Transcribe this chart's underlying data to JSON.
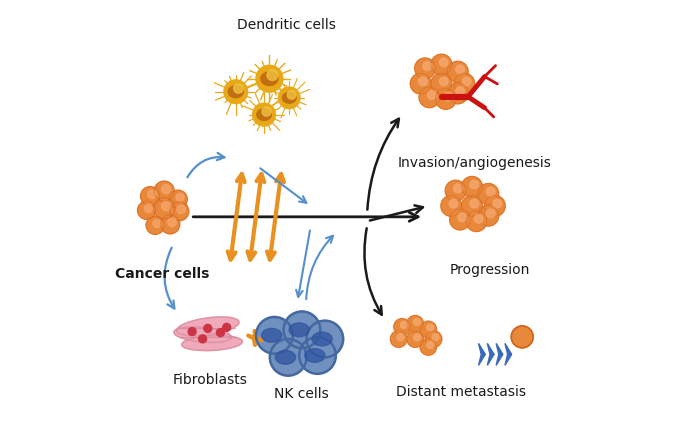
{
  "background_color": "#ffffff",
  "fig_width": 6.82,
  "fig_height": 4.38,
  "dpi": 100,
  "labels": {
    "dendritic_cells": "Dendritic cells",
    "cancer_cells": "Cancer cells",
    "fibroblasts": "Fibroblasts",
    "nk_cells": "NK cells",
    "invasion": "Invasion/angiogenesis",
    "progression": "Progression",
    "distant": "Distant metastasis"
  },
  "colors": {
    "cancer_outer": "#E8883A",
    "cancer_inner": "#F5A870",
    "cancer_ring": "#D4611A",
    "dendritic_body": "#E8A818",
    "dendritic_nucleus": "#C07010",
    "dendritic_light": "#F0C040",
    "fibroblast_body": "#F0AABB",
    "fibroblast_line": "#D08090",
    "fibroblast_spot": "#CC3344",
    "nk_outer": "#7090C0",
    "nk_inner": "#4468A0",
    "nk_nucleus": "#3055A0",
    "orange_arrow": "#E89020",
    "blue_arrow": "#5590CC",
    "black": "#1A1A1A",
    "red_vessel": "#CC1111",
    "text": "#1A1A1A",
    "blue_chevron": "#3366BB"
  }
}
